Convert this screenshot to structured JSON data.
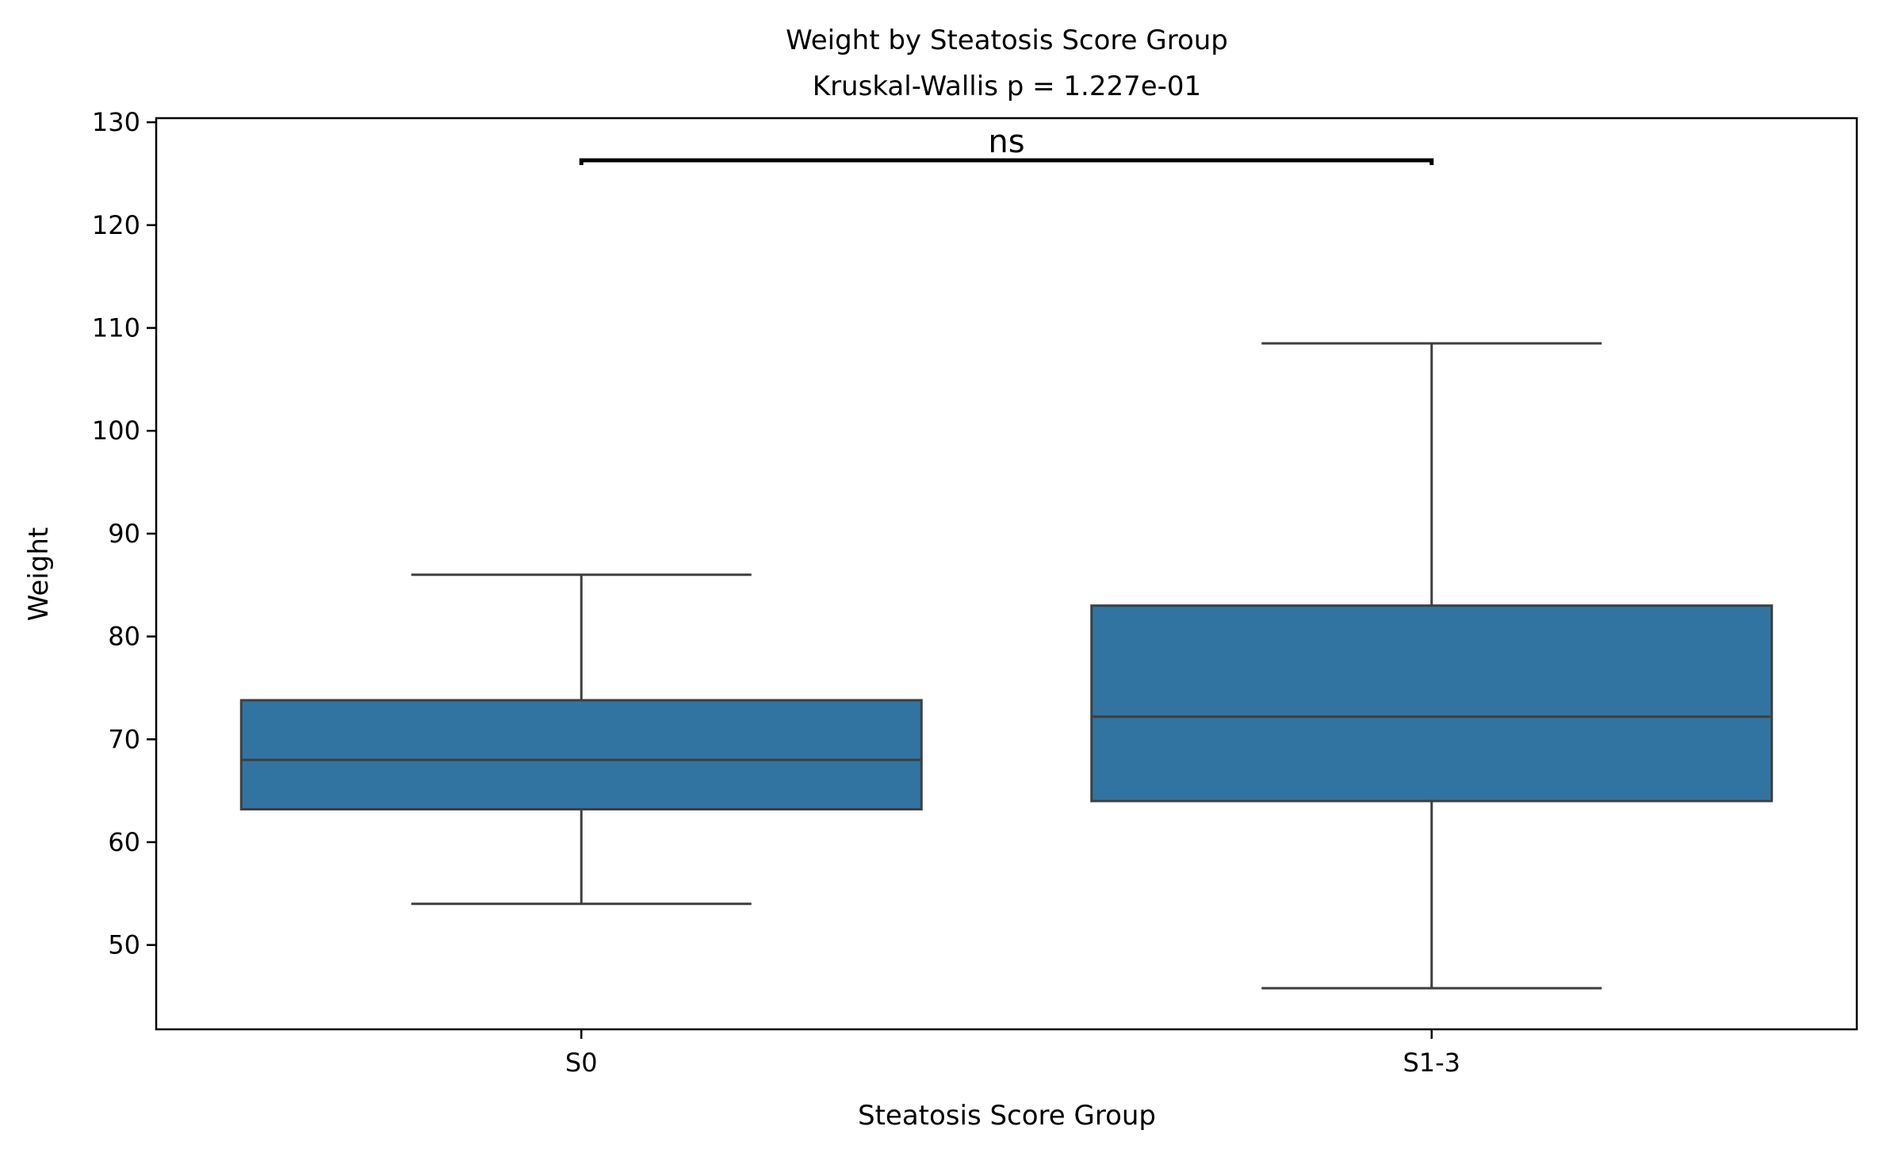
{
  "chart_data": {
    "type": "box",
    "title": "Weight by Steatosis Score Group",
    "subtitle": "Kruskal-Wallis p = 1.227e-01",
    "xlabel": "Steatosis Score Group",
    "ylabel": "Weight",
    "ylim": [
      41.8,
      130.4
    ],
    "yticks": [
      50,
      60,
      70,
      80,
      90,
      100,
      110,
      120,
      130
    ],
    "categories": [
      "S0",
      "S1-3"
    ],
    "boxes": [
      {
        "category": "S0",
        "whisker_low": 54.0,
        "q1": 63.2,
        "median": 68.0,
        "q3": 73.8,
        "whisker_high": 86.0
      },
      {
        "category": "S1-3",
        "whisker_low": 45.8,
        "q1": 64.0,
        "median": 72.2,
        "q3": 83.0,
        "whisker_high": 108.5
      }
    ],
    "box_color": "#3274a1",
    "edge_color": "#3f3f3f",
    "grid": false,
    "significance": {
      "from": "S0",
      "to": "S1-3",
      "label": "ns",
      "y": 126.3
    }
  }
}
